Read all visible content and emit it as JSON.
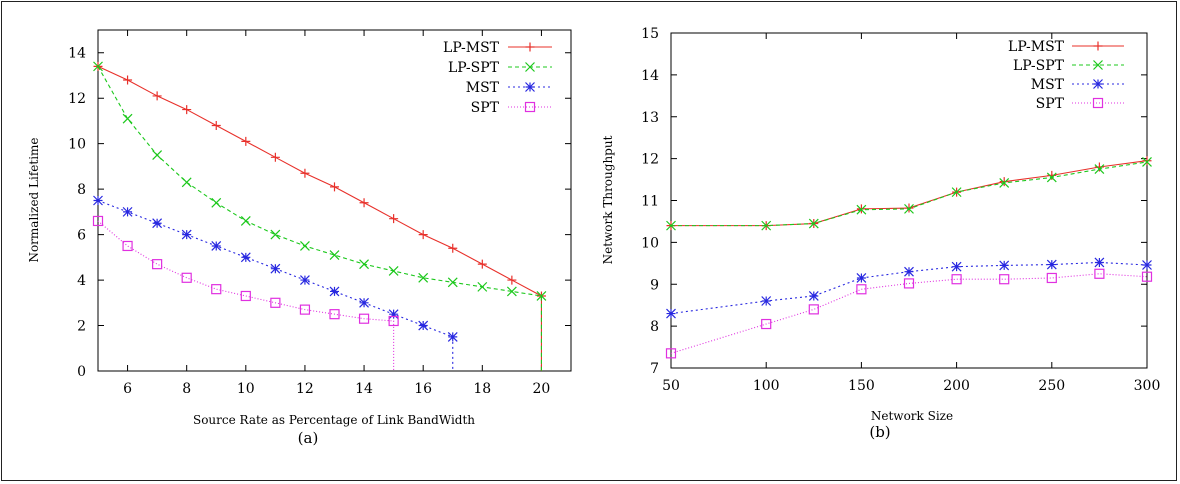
{
  "chart_data": [
    {
      "type": "line",
      "caption": "(a)",
      "xlabel": "Source Rate as Percentage of Link BandWidth",
      "ylabel": "Normalized Lifetime",
      "xlim": [
        5,
        21
      ],
      "ylim": [
        0,
        15
      ],
      "xticks": [
        6,
        8,
        10,
        12,
        14,
        16,
        18,
        20
      ],
      "yticks": [
        0,
        2,
        4,
        6,
        8,
        10,
        12,
        14
      ],
      "grid": false,
      "legend_position": "top-right",
      "series": [
        {
          "name": "LP-MST",
          "color": "#e8302a",
          "dash": "",
          "marker": "plus",
          "x": [
            5,
            6,
            7,
            8,
            9,
            10,
            11,
            12,
            13,
            14,
            15,
            16,
            17,
            18,
            19,
            20
          ],
          "y": [
            13.4,
            12.8,
            12.1,
            11.5,
            10.8,
            10.1,
            9.4,
            8.7,
            8.1,
            7.4,
            6.7,
            6.0,
            5.4,
            4.7,
            4.0,
            3.3
          ],
          "drop_to_zero": true
        },
        {
          "name": "LP-SPT",
          "color": "#1cc81c",
          "dash": "4,3",
          "marker": "x",
          "x": [
            5,
            6,
            7,
            8,
            9,
            10,
            11,
            12,
            13,
            14,
            15,
            16,
            17,
            18,
            19,
            20
          ],
          "y": [
            13.4,
            11.1,
            9.5,
            8.3,
            7.4,
            6.6,
            6.0,
            5.5,
            5.1,
            4.7,
            4.4,
            4.1,
            3.9,
            3.7,
            3.5,
            3.3
          ],
          "drop_to_zero": true
        },
        {
          "name": "MST",
          "color": "#2828e0",
          "dash": "2,3",
          "marker": "star",
          "x": [
            5,
            6,
            7,
            8,
            9,
            10,
            11,
            12,
            13,
            14,
            15,
            16,
            17
          ],
          "y": [
            7.5,
            7.0,
            6.5,
            6.0,
            5.5,
            5.0,
            4.5,
            4.0,
            3.5,
            3.0,
            2.5,
            2.0,
            1.5
          ],
          "drop_to_zero": true
        },
        {
          "name": "SPT",
          "color": "#e030e0",
          "dash": "1,2",
          "marker": "square",
          "x": [
            5,
            6,
            7,
            8,
            9,
            10,
            11,
            12,
            13,
            14,
            15
          ],
          "y": [
            6.6,
            5.5,
            4.7,
            4.1,
            3.6,
            3.3,
            3.0,
            2.7,
            2.5,
            2.3,
            2.2
          ],
          "drop_to_zero": true
        }
      ]
    },
    {
      "type": "line",
      "caption": "(b)",
      "xlabel": "Network Size",
      "ylabel": "Network Throughput",
      "xlim": [
        50,
        300
      ],
      "ylim": [
        7,
        15
      ],
      "xticks": [
        50,
        100,
        150,
        200,
        250,
        300
      ],
      "yticks": [
        7,
        8,
        9,
        10,
        11,
        12,
        13,
        14,
        15
      ],
      "grid": false,
      "legend_position": "top-right",
      "series": [
        {
          "name": "LP-MST",
          "color": "#e8302a",
          "dash": "",
          "marker": "plus",
          "x": [
            50,
            100,
            125,
            150,
            175,
            200,
            225,
            250,
            275,
            300
          ],
          "y": [
            10.4,
            10.4,
            10.45,
            10.8,
            10.82,
            11.2,
            11.45,
            11.6,
            11.8,
            11.95
          ]
        },
        {
          "name": "LP-SPT",
          "color": "#1cc81c",
          "dash": "4,3",
          "marker": "x",
          "x": [
            50,
            100,
            125,
            150,
            175,
            200,
            225,
            250,
            275,
            300
          ],
          "y": [
            10.4,
            10.4,
            10.45,
            10.78,
            10.8,
            11.2,
            11.42,
            11.55,
            11.75,
            11.92
          ]
        },
        {
          "name": "MST",
          "color": "#2828e0",
          "dash": "2,3",
          "marker": "star",
          "x": [
            50,
            100,
            125,
            150,
            175,
            200,
            225,
            250,
            275,
            300
          ],
          "y": [
            8.3,
            8.6,
            8.72,
            9.15,
            9.3,
            9.42,
            9.45,
            9.47,
            9.52,
            9.46
          ]
        },
        {
          "name": "SPT",
          "color": "#e030e0",
          "dash": "1,2",
          "marker": "square",
          "x": [
            50,
            100,
            125,
            150,
            175,
            200,
            225,
            250,
            275,
            300
          ],
          "y": [
            7.35,
            8.05,
            8.4,
            8.88,
            9.02,
            9.12,
            9.12,
            9.15,
            9.25,
            9.18
          ]
        }
      ]
    }
  ]
}
